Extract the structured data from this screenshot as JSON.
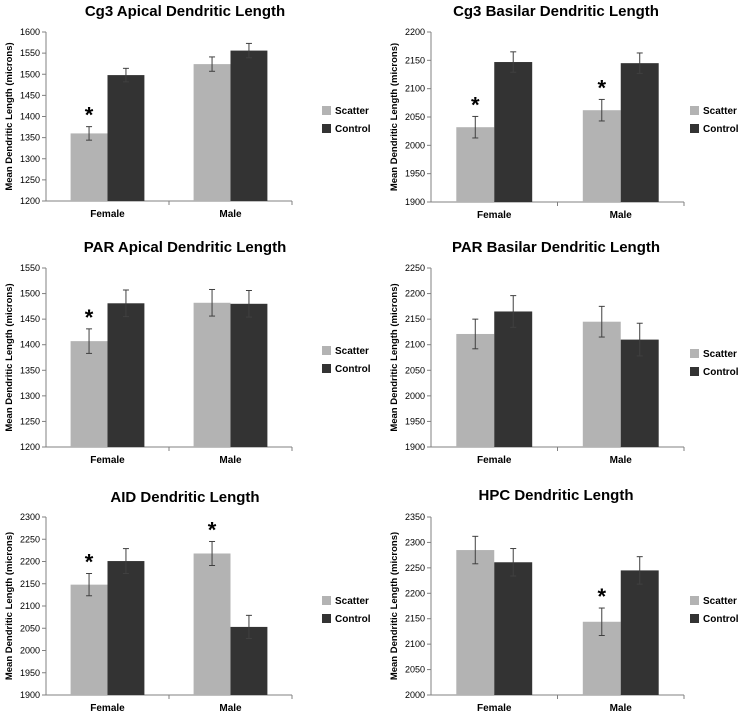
{
  "colors": {
    "scatter": "#b3b3b3",
    "control": "#333333",
    "axis": "#808080",
    "error": "#404040"
  },
  "chart_data": [
    {
      "type": "bar",
      "title": "Cg3 Apical Dendritic Length",
      "ylabel": "Mean Dendritic Length (microns)",
      "categories": [
        "Female",
        "Male"
      ],
      "ylim": [
        1200,
        1600
      ],
      "ytick_step": 50,
      "series": [
        {
          "name": "Scatter",
          "values": [
            1360,
            1524
          ],
          "errors": [
            16,
            17
          ],
          "significant": [
            true,
            false
          ]
        },
        {
          "name": "Control",
          "values": [
            1498,
            1556
          ],
          "errors": [
            16,
            17
          ],
          "significant": [
            false,
            false
          ]
        }
      ]
    },
    {
      "type": "bar",
      "title": "Cg3 Basilar Dendritic Length",
      "ylabel": "Mean Dendritic Length (microns)",
      "categories": [
        "Female",
        "Male"
      ],
      "ylim": [
        1900,
        2200
      ],
      "ytick_step": 50,
      "series": [
        {
          "name": "Scatter",
          "values": [
            2032,
            2062
          ],
          "errors": [
            19,
            19
          ],
          "significant": [
            true,
            true
          ]
        },
        {
          "name": "Control",
          "values": [
            2147,
            2145
          ],
          "errors": [
            18,
            18
          ],
          "significant": [
            false,
            false
          ]
        }
      ]
    },
    {
      "type": "bar",
      "title": "PAR Apical Dendritic Length",
      "ylabel": "Mean Dendritic Length (microns)",
      "categories": [
        "Female",
        "Male"
      ],
      "ylim": [
        1200,
        1550
      ],
      "ytick_step": 50,
      "series": [
        {
          "name": "Scatter",
          "values": [
            1407,
            1482
          ],
          "errors": [
            24,
            26
          ],
          "significant": [
            true,
            false
          ]
        },
        {
          "name": "Control",
          "values": [
            1481,
            1480
          ],
          "errors": [
            26,
            26
          ],
          "significant": [
            false,
            false
          ]
        }
      ]
    },
    {
      "type": "bar",
      "title": "PAR Basilar Dendritic Length",
      "ylabel": "Mean Dendritic Length (microns)",
      "categories": [
        "Female",
        "Male"
      ],
      "ylim": [
        1900,
        2250
      ],
      "ytick_step": 50,
      "series": [
        {
          "name": "Scatter",
          "values": [
            2121,
            2145
          ],
          "errors": [
            29,
            30
          ],
          "significant": [
            false,
            false
          ]
        },
        {
          "name": "Control",
          "values": [
            2165,
            2110
          ],
          "errors": [
            31,
            32
          ],
          "significant": [
            false,
            false
          ]
        }
      ]
    },
    {
      "type": "bar",
      "title": "AID Dendritic Length",
      "ylabel": "Mean Dendritic Length (microns)",
      "categories": [
        "Female",
        "Male"
      ],
      "ylim": [
        1900,
        2300
      ],
      "ytick_step": 50,
      "series": [
        {
          "name": "Scatter",
          "values": [
            2148,
            2218
          ],
          "errors": [
            25,
            27
          ],
          "significant": [
            true,
            true
          ]
        },
        {
          "name": "Control",
          "values": [
            2201,
            2053
          ],
          "errors": [
            28,
            26
          ],
          "significant": [
            false,
            false
          ]
        }
      ]
    },
    {
      "type": "bar",
      "title": "HPC Dendritic Length",
      "ylabel": "Mean Dendritic Length (microns)",
      "categories": [
        "Female",
        "Male"
      ],
      "ylim": [
        2000,
        2350
      ],
      "ytick_step": 50,
      "series": [
        {
          "name": "Scatter",
          "values": [
            2285,
            2144
          ],
          "errors": [
            27,
            27
          ],
          "significant": [
            false,
            true
          ]
        },
        {
          "name": "Control",
          "values": [
            2261,
            2245
          ],
          "errors": [
            27,
            27
          ],
          "significant": [
            false,
            false
          ]
        }
      ]
    }
  ],
  "significance_marker": "*"
}
